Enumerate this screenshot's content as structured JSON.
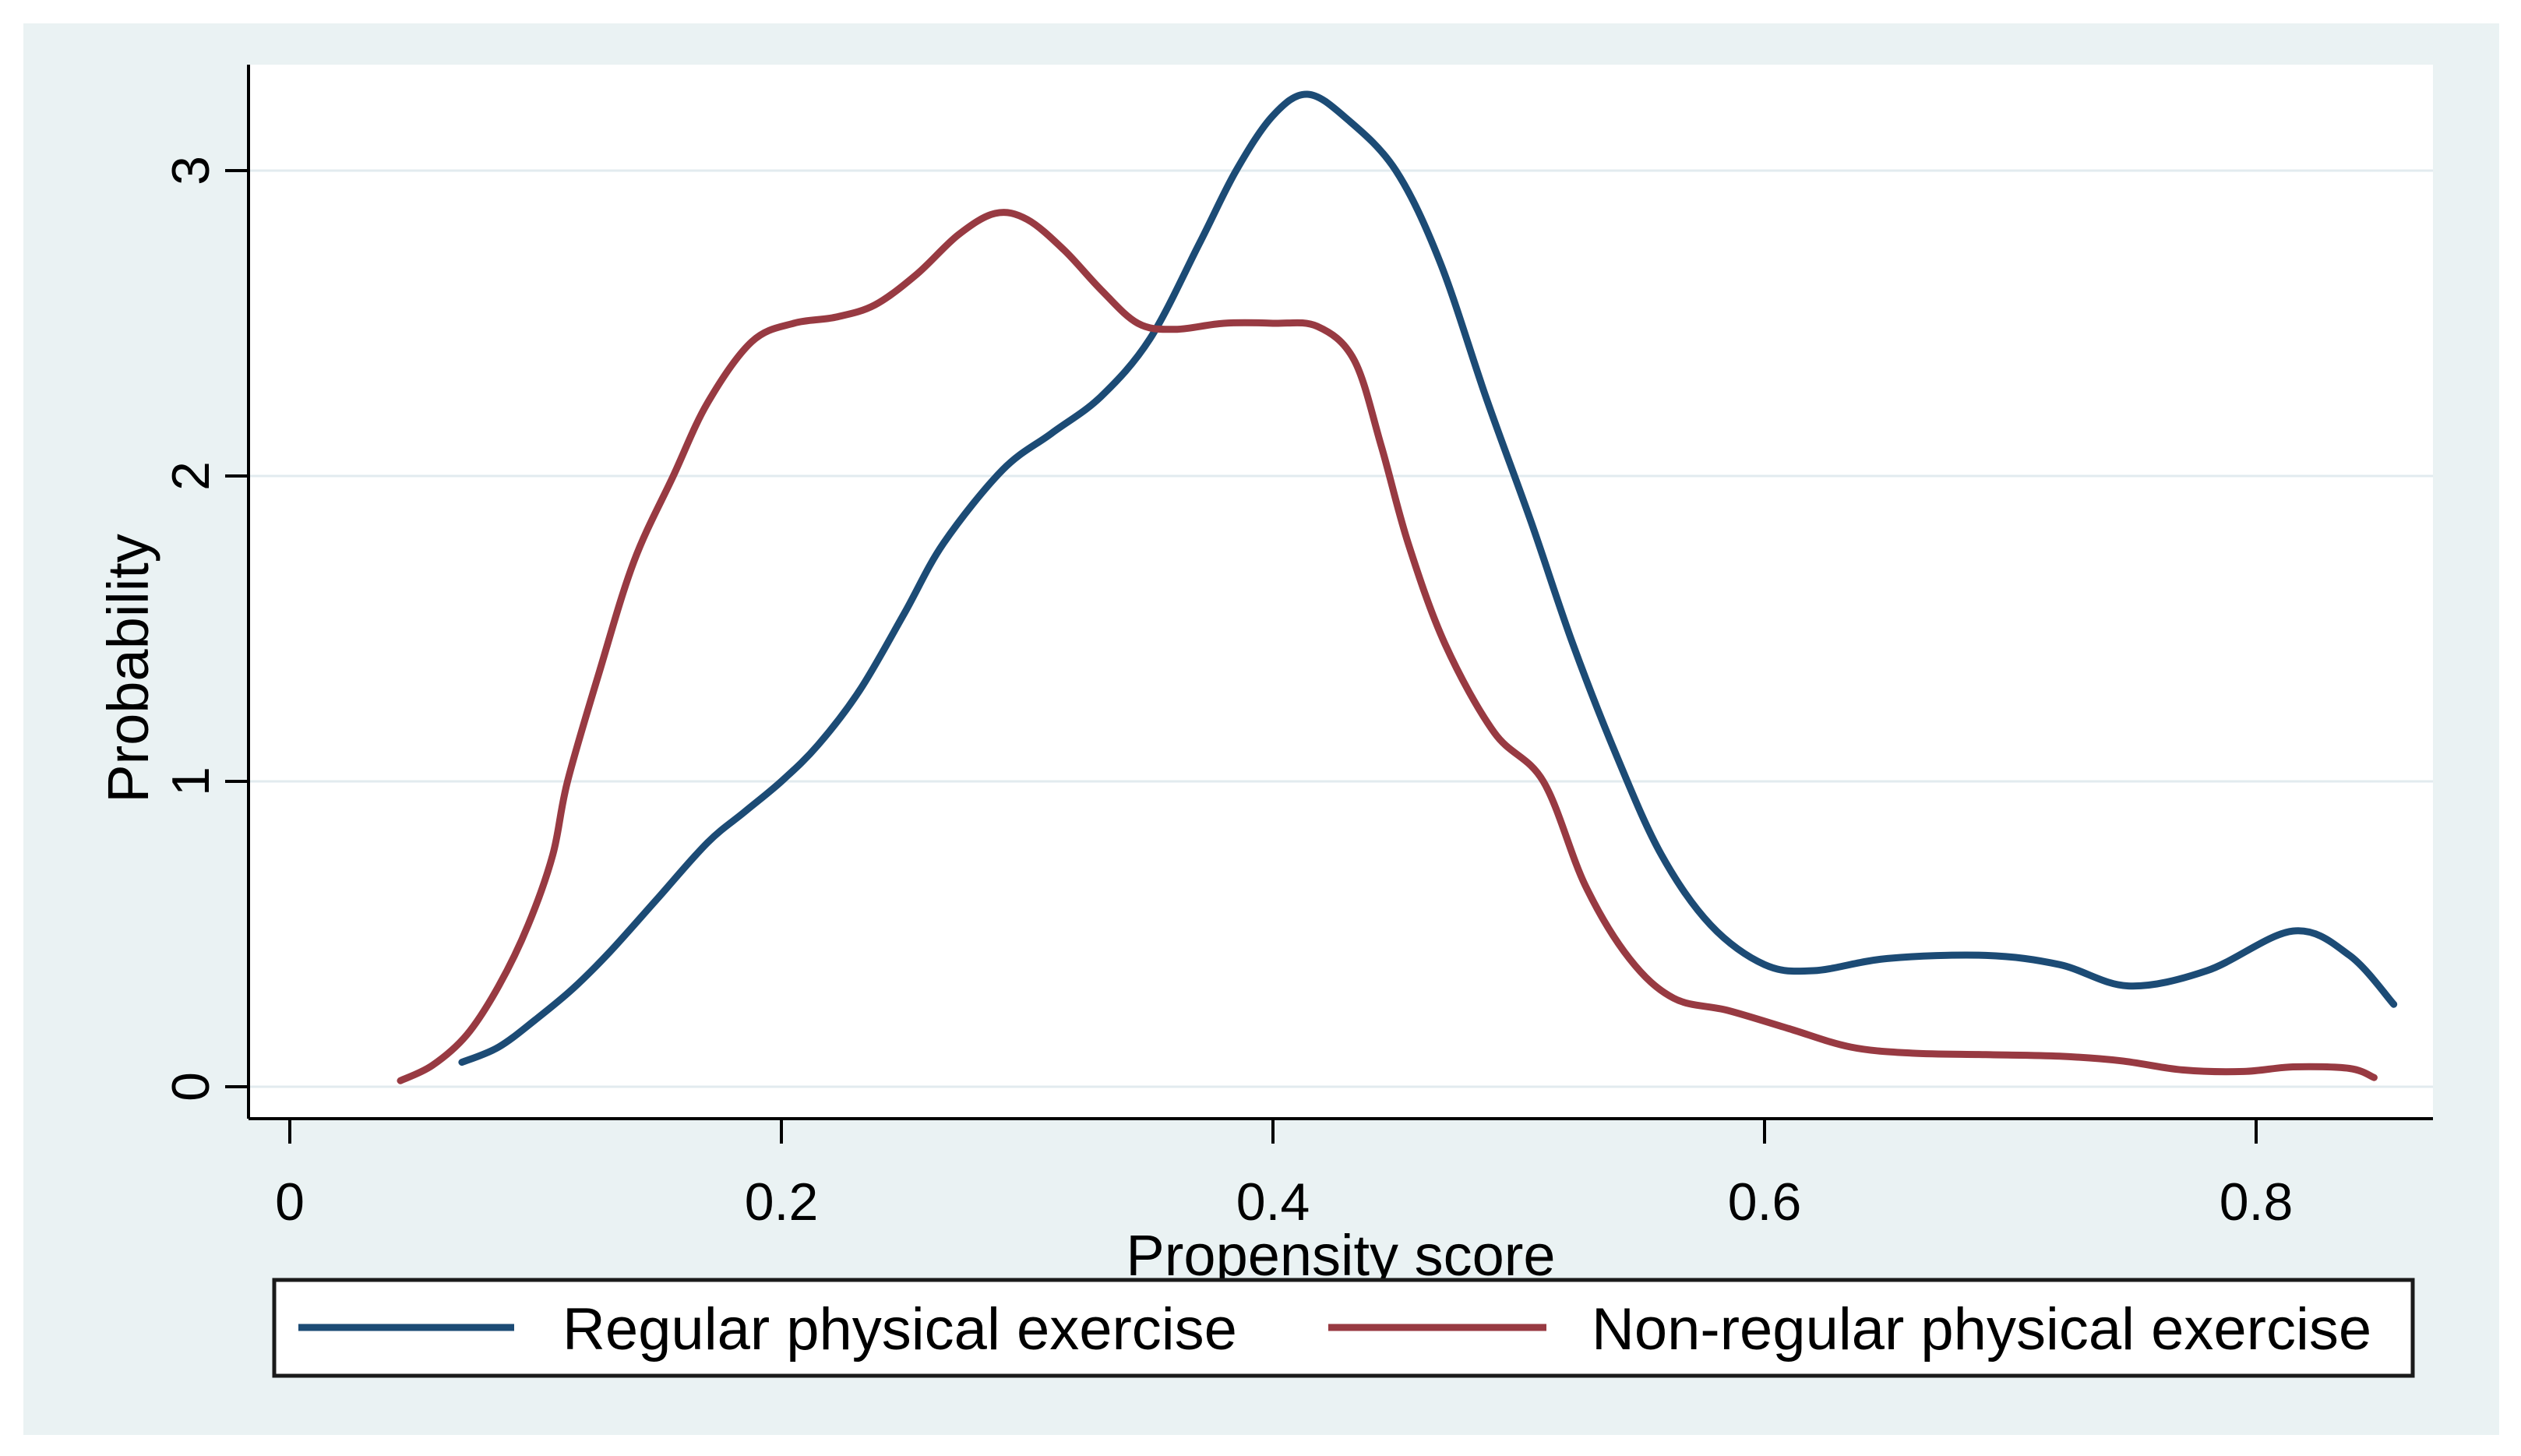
{
  "figure": {
    "description": "Kernel density plot of propensity scores by exercise group",
    "title": ""
  },
  "colors": {
    "page_bg": "#ffffff",
    "panel_bg": "#eaf2f3",
    "plot_bg": "#ffffff",
    "grid": "#e2ebef",
    "axis": "#000000",
    "tick_text": "#000000",
    "legend_bg": "#ffffff",
    "legend_border": "#1a1a1a",
    "series_blue": "#1c4b75",
    "series_red": "#983a42"
  },
  "chart_data": {
    "type": "line",
    "subtype": "kernel-density",
    "title": "",
    "xlabel": "Propensity score",
    "ylabel": "Probability",
    "xlim": [
      -0.017,
      0.88
    ],
    "ylim": [
      -0.105,
      3.35
    ],
    "grid": "horizontal-only",
    "legend_position": "bottom",
    "x_ticks": [
      0,
      0.2,
      0.4,
      0.6,
      0.8
    ],
    "x_tick_labels": [
      "0",
      "0.2",
      "0.4",
      "0.6",
      "0.8"
    ],
    "y_ticks": [
      0,
      1,
      2,
      3
    ],
    "y_tick_labels": [
      "0",
      "1",
      "2",
      "3"
    ],
    "series": [
      {
        "name": "Regular physical exercise",
        "color": "#1c4b75",
        "points": [
          [
            0.07,
            0.08
          ],
          [
            0.085,
            0.13
          ],
          [
            0.1,
            0.22
          ],
          [
            0.115,
            0.32
          ],
          [
            0.13,
            0.44
          ],
          [
            0.15,
            0.62
          ],
          [
            0.17,
            0.8
          ],
          [
            0.185,
            0.9
          ],
          [
            0.2,
            1.0
          ],
          [
            0.215,
            1.12
          ],
          [
            0.232,
            1.3
          ],
          [
            0.25,
            1.55
          ],
          [
            0.266,
            1.78
          ],
          [
            0.29,
            2.02
          ],
          [
            0.31,
            2.14
          ],
          [
            0.33,
            2.26
          ],
          [
            0.35,
            2.45
          ],
          [
            0.37,
            2.76
          ],
          [
            0.385,
            3.0
          ],
          [
            0.4,
            3.18
          ],
          [
            0.414,
            3.25
          ],
          [
            0.43,
            3.17
          ],
          [
            0.45,
            3.0
          ],
          [
            0.468,
            2.7
          ],
          [
            0.487,
            2.25
          ],
          [
            0.505,
            1.85
          ],
          [
            0.522,
            1.45
          ],
          [
            0.54,
            1.08
          ],
          [
            0.558,
            0.76
          ],
          [
            0.578,
            0.53
          ],
          [
            0.6,
            0.4
          ],
          [
            0.62,
            0.38
          ],
          [
            0.65,
            0.42
          ],
          [
            0.69,
            0.43
          ],
          [
            0.72,
            0.4
          ],
          [
            0.748,
            0.33
          ],
          [
            0.78,
            0.38
          ],
          [
            0.815,
            0.51
          ],
          [
            0.838,
            0.43
          ],
          [
            0.856,
            0.27
          ]
        ]
      },
      {
        "name": "Non-regular physical exercise",
        "color": "#983a42",
        "points": [
          [
            0.045,
            0.02
          ],
          [
            0.058,
            0.07
          ],
          [
            0.072,
            0.17
          ],
          [
            0.085,
            0.33
          ],
          [
            0.097,
            0.53
          ],
          [
            0.107,
            0.76
          ],
          [
            0.113,
            1.0
          ],
          [
            0.126,
            1.36
          ],
          [
            0.14,
            1.72
          ],
          [
            0.156,
            2.0
          ],
          [
            0.17,
            2.24
          ],
          [
            0.188,
            2.44
          ],
          [
            0.205,
            2.5
          ],
          [
            0.222,
            2.52
          ],
          [
            0.238,
            2.56
          ],
          [
            0.255,
            2.66
          ],
          [
            0.272,
            2.79
          ],
          [
            0.287,
            2.86
          ],
          [
            0.3,
            2.84
          ],
          [
            0.315,
            2.74
          ],
          [
            0.33,
            2.61
          ],
          [
            0.345,
            2.5
          ],
          [
            0.36,
            2.48
          ],
          [
            0.38,
            2.5
          ],
          [
            0.4,
            2.5
          ],
          [
            0.418,
            2.49
          ],
          [
            0.433,
            2.38
          ],
          [
            0.444,
            2.1
          ],
          [
            0.455,
            1.78
          ],
          [
            0.47,
            1.45
          ],
          [
            0.49,
            1.16
          ],
          [
            0.51,
            1.0
          ],
          [
            0.527,
            0.66
          ],
          [
            0.545,
            0.42
          ],
          [
            0.563,
            0.29
          ],
          [
            0.585,
            0.25
          ],
          [
            0.61,
            0.19
          ],
          [
            0.635,
            0.13
          ],
          [
            0.66,
            0.11
          ],
          [
            0.69,
            0.105
          ],
          [
            0.72,
            0.1
          ],
          [
            0.745,
            0.085
          ],
          [
            0.77,
            0.055
          ],
          [
            0.795,
            0.05
          ],
          [
            0.815,
            0.065
          ],
          [
            0.838,
            0.06
          ],
          [
            0.848,
            0.03
          ]
        ]
      }
    ]
  }
}
